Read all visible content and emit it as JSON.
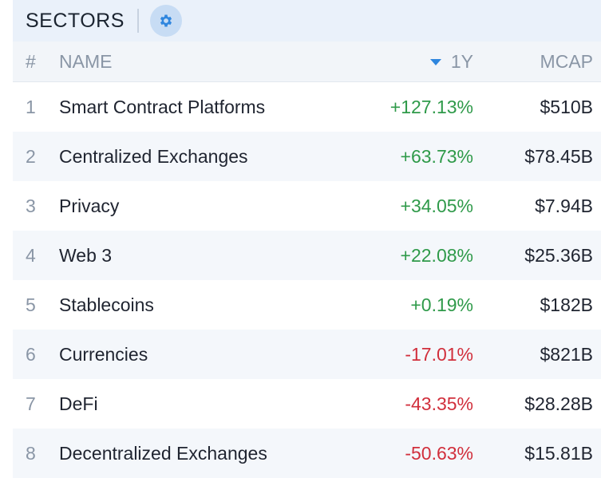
{
  "header": {
    "title": "SECTORS",
    "settings_icon": "gear-icon",
    "accent": "#2f86de"
  },
  "columns": {
    "rank": "#",
    "name": "NAME",
    "change": "1Y",
    "mcap": "MCAP"
  },
  "colors": {
    "positive": "#2f9a4a",
    "negative": "#d12f3c"
  },
  "rows": [
    {
      "rank": "1",
      "name": "Smart Contract Platforms",
      "change": "+127.13%",
      "mcap": "$510B",
      "dir": "pos"
    },
    {
      "rank": "2",
      "name": "Centralized Exchanges",
      "change": "+63.73%",
      "mcap": "$78.45B",
      "dir": "pos"
    },
    {
      "rank": "3",
      "name": "Privacy",
      "change": "+34.05%",
      "mcap": "$7.94B",
      "dir": "pos"
    },
    {
      "rank": "4",
      "name": "Web 3",
      "change": "+22.08%",
      "mcap": "$25.36B",
      "dir": "pos"
    },
    {
      "rank": "5",
      "name": "Stablecoins",
      "change": "+0.19%",
      "mcap": "$182B",
      "dir": "pos"
    },
    {
      "rank": "6",
      "name": "Currencies",
      "change": "-17.01%",
      "mcap": "$821B",
      "dir": "neg"
    },
    {
      "rank": "7",
      "name": "DeFi",
      "change": "-43.35%",
      "mcap": "$28.28B",
      "dir": "neg"
    },
    {
      "rank": "8",
      "name": "Decentralized Exchanges",
      "change": "-50.63%",
      "mcap": "$15.81B",
      "dir": "neg"
    }
  ]
}
